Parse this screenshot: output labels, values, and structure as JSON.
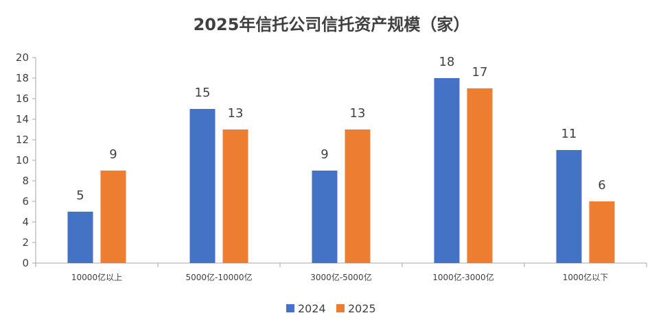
{
  "chart_data": {
    "type": "bar",
    "title": "2025年信托公司信托资产规模（家）",
    "xlabel": "",
    "ylabel": "",
    "categories": [
      "10000亿以上",
      "5000亿-10000亿",
      "3000亿-5000亿",
      "1000亿-3000亿",
      "1000亿以下"
    ],
    "series": [
      {
        "name": "2024",
        "values": [
          5,
          15,
          9,
          18,
          11
        ],
        "color": "#4472C4"
      },
      {
        "name": "2025",
        "values": [
          9,
          13,
          13,
          17,
          6
        ],
        "color": "#ED7D31"
      }
    ],
    "ylim": [
      0,
      20
    ],
    "yticks": [
      "0",
      "2",
      "4",
      "6",
      "8",
      "10",
      "12",
      "14",
      "16",
      "18",
      "20"
    ],
    "grid": false,
    "legend": "bottom-center",
    "data_labels": true
  }
}
